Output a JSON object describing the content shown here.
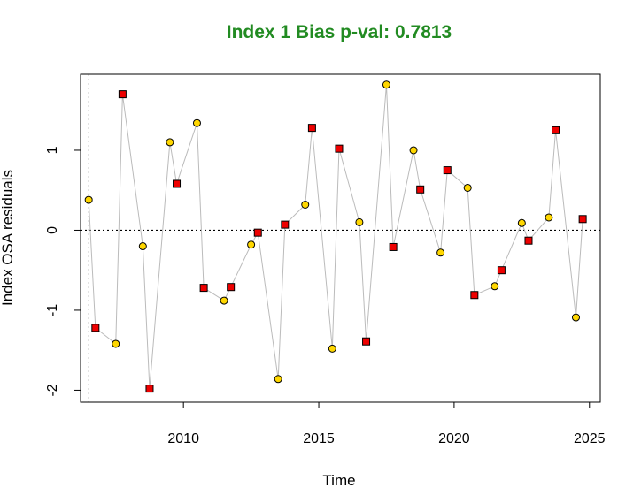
{
  "chart_data": {
    "type": "scatter",
    "title": "Index 1 Bias p-val: 0.7813",
    "title_color": "#228B22",
    "xlabel": "Time",
    "ylabel": "Index OSA residuals",
    "xlim": [
      2006.2,
      2025.4
    ],
    "ylim": [
      -2.15,
      1.95
    ],
    "x_ticks": [
      2010,
      2015,
      2020,
      2025
    ],
    "y_ticks": [
      -2,
      -1,
      0,
      1
    ],
    "hline": 0,
    "vline": 2006.5,
    "line_color": "#BBBBBB",
    "series": [
      {
        "marker": "circle",
        "fill": "#FFD700",
        "x": [
          2006.5,
          2007.5,
          2008.5,
          2009.5,
          2010.5,
          2011.5,
          2012.5,
          2013.5,
          2014.5,
          2015.5,
          2016.5,
          2017.5,
          2018.5,
          2019.5,
          2020.5,
          2021.5,
          2022.5,
          2023.5,
          2024.5
        ],
        "values": [
          0.38,
          -1.42,
          -0.2,
          1.1,
          1.34,
          -0.88,
          -0.18,
          -1.86,
          0.32,
          -1.48,
          0.1,
          1.82,
          1.0,
          -0.28,
          0.53,
          -0.7,
          0.09,
          0.16,
          -1.09
        ]
      },
      {
        "marker": "square",
        "fill": "#EE0000",
        "x": [
          2006.75,
          2007.75,
          2008.75,
          2009.75,
          2010.75,
          2011.75,
          2012.75,
          2013.75,
          2014.75,
          2015.75,
          2016.75,
          2017.75,
          2018.75,
          2019.75,
          2020.75,
          2021.75,
          2022.75,
          2023.75,
          2024.75
        ],
        "values": [
          -1.22,
          1.7,
          -1.98,
          0.58,
          -0.72,
          -0.71,
          -0.03,
          0.07,
          1.28,
          1.02,
          -1.39,
          -0.21,
          0.51,
          0.75,
          -0.81,
          -0.5,
          -0.13,
          1.25,
          0.14
        ]
      }
    ]
  }
}
